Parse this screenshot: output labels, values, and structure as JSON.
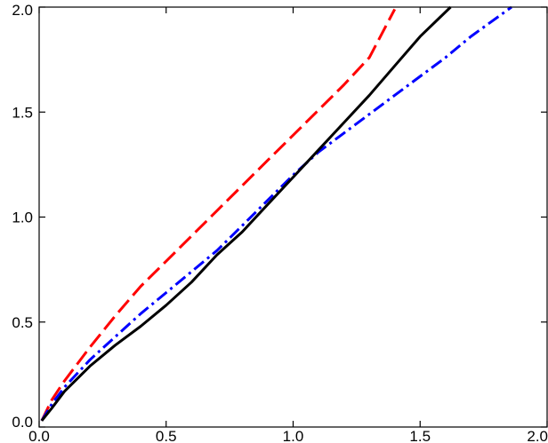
{
  "chart_data": {
    "type": "line",
    "title": "",
    "xlabel": "",
    "ylabel": "",
    "xlim": [
      0.0,
      2.0
    ],
    "ylim": [
      0.0,
      2.0
    ],
    "grid": false,
    "legend": "none",
    "x_ticks": [
      0.0,
      0.5,
      1.0,
      1.5,
      2.0
    ],
    "y_ticks": [
      0.0,
      0.5,
      1.0,
      1.5,
      2.0
    ],
    "x_tick_labels": [
      "0.0",
      "0.5",
      "1.0",
      "1.5",
      "2.0"
    ],
    "y_tick_labels": [
      "0.0",
      "0.5",
      "1.0",
      "1.5",
      "2.0"
    ],
    "series": [
      {
        "color": "#ff0000",
        "style": "dashed",
        "points": [
          [
            0.01,
            0.03
          ],
          [
            0.05,
            0.13
          ],
          [
            0.1,
            0.22
          ],
          [
            0.2,
            0.38
          ],
          [
            0.3,
            0.53
          ],
          [
            0.4,
            0.67
          ],
          [
            0.5,
            0.79
          ],
          [
            0.6,
            0.91
          ],
          [
            0.7,
            1.03
          ],
          [
            0.8,
            1.15
          ],
          [
            0.9,
            1.27
          ],
          [
            1.0,
            1.39
          ],
          [
            1.1,
            1.51
          ],
          [
            1.2,
            1.63
          ],
          [
            1.3,
            1.76
          ],
          [
            1.4,
            1.99
          ]
        ]
      },
      {
        "color": "#0000ff",
        "style": "dashdot",
        "points": [
          [
            0.01,
            0.03
          ],
          [
            0.05,
            0.11
          ],
          [
            0.1,
            0.19
          ],
          [
            0.2,
            0.32
          ],
          [
            0.3,
            0.43
          ],
          [
            0.4,
            0.54
          ],
          [
            0.5,
            0.64
          ],
          [
            0.6,
            0.74
          ],
          [
            0.7,
            0.84
          ],
          [
            0.8,
            0.96
          ],
          [
            0.9,
            1.08
          ],
          [
            1.0,
            1.2
          ],
          [
            1.1,
            1.31
          ],
          [
            1.2,
            1.4
          ],
          [
            1.3,
            1.49
          ],
          [
            1.4,
            1.58
          ],
          [
            1.5,
            1.67
          ],
          [
            1.6,
            1.76
          ],
          [
            1.7,
            1.86
          ],
          [
            1.86,
            2.0
          ]
        ]
      },
      {
        "color": "#000000",
        "style": "solid",
        "points": [
          [
            0.01,
            0.03
          ],
          [
            0.05,
            0.09
          ],
          [
            0.1,
            0.17
          ],
          [
            0.2,
            0.29
          ],
          [
            0.3,
            0.39
          ],
          [
            0.4,
            0.48
          ],
          [
            0.5,
            0.58
          ],
          [
            0.6,
            0.69
          ],
          [
            0.7,
            0.82
          ],
          [
            0.8,
            0.93
          ],
          [
            0.9,
            1.06
          ],
          [
            1.0,
            1.19
          ],
          [
            1.1,
            1.32
          ],
          [
            1.2,
            1.45
          ],
          [
            1.3,
            1.58
          ],
          [
            1.4,
            1.72
          ],
          [
            1.5,
            1.86
          ],
          [
            1.62,
            2.0
          ]
        ]
      }
    ]
  }
}
